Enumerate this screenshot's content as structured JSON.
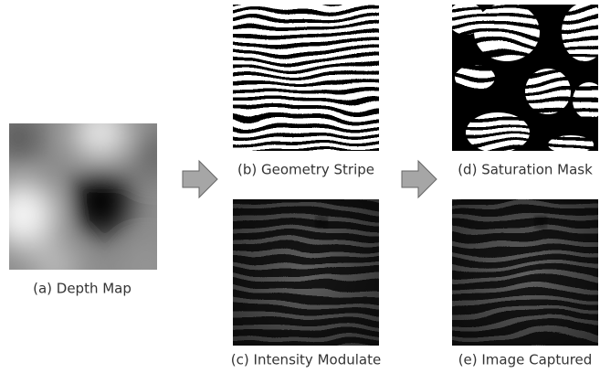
{
  "panels": [
    {
      "caption": "(a) Depth Map"
    },
    {
      "caption": "(b) Geometry Stripe"
    },
    {
      "caption": "(c) Intensity Modulate"
    },
    {
      "caption": "(d) Saturation Mask"
    },
    {
      "caption": "(e) Image Captured"
    }
  ]
}
